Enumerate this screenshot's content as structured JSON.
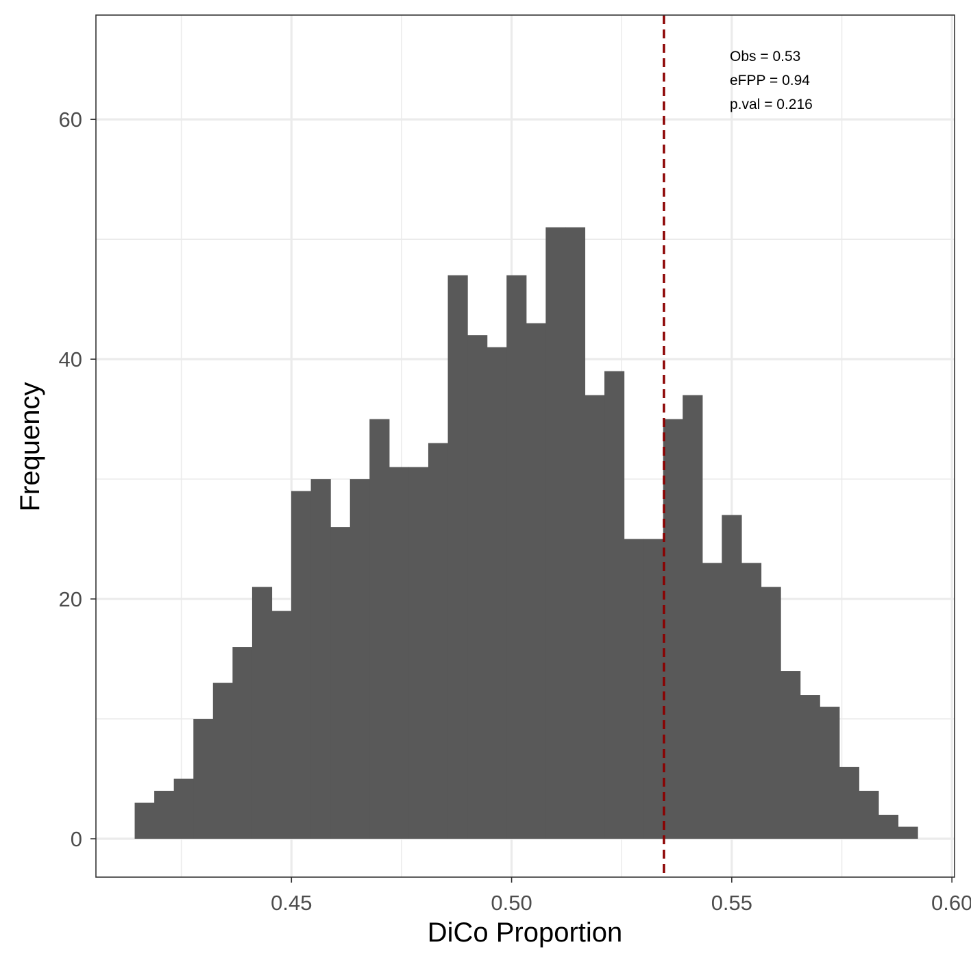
{
  "chart_data": {
    "type": "bar",
    "subtype": "histogram",
    "xlabel": "DiCo Proportion",
    "ylabel": "Frequency",
    "xlim": [
      0.4056,
      0.6006
    ],
    "ylim": [
      -3.2,
      68.7
    ],
    "x_ticks": [
      "0.45",
      "0.50",
      "0.55",
      "0.60"
    ],
    "x_tick_values": [
      0.45,
      0.5,
      0.55,
      0.6
    ],
    "y_ticks": [
      "0",
      "20",
      "40",
      "60"
    ],
    "y_tick_values": [
      0,
      20,
      40,
      60
    ],
    "bin_start": 0.4144,
    "bin_width": 0.004445,
    "values": [
      3,
      4,
      5,
      10,
      13,
      16,
      21,
      19,
      29,
      30,
      26,
      30,
      35,
      31,
      31,
      33,
      47,
      42,
      41,
      47,
      43,
      51,
      51,
      37,
      39,
      25,
      25,
      35,
      37,
      23,
      27,
      23,
      21,
      14,
      12,
      11,
      6,
      4,
      2,
      1
    ],
    "observed_line": {
      "x": 0.5346,
      "color": "#8b0000",
      "style": "dashed"
    },
    "annotations": [
      "Obs =  0.53",
      "eFPP =  0.94",
      "p.val =  0.216"
    ],
    "grid": true,
    "colors": {
      "bar": "#595959",
      "grid": "#ebebeb",
      "panel_border": "#333333"
    }
  }
}
